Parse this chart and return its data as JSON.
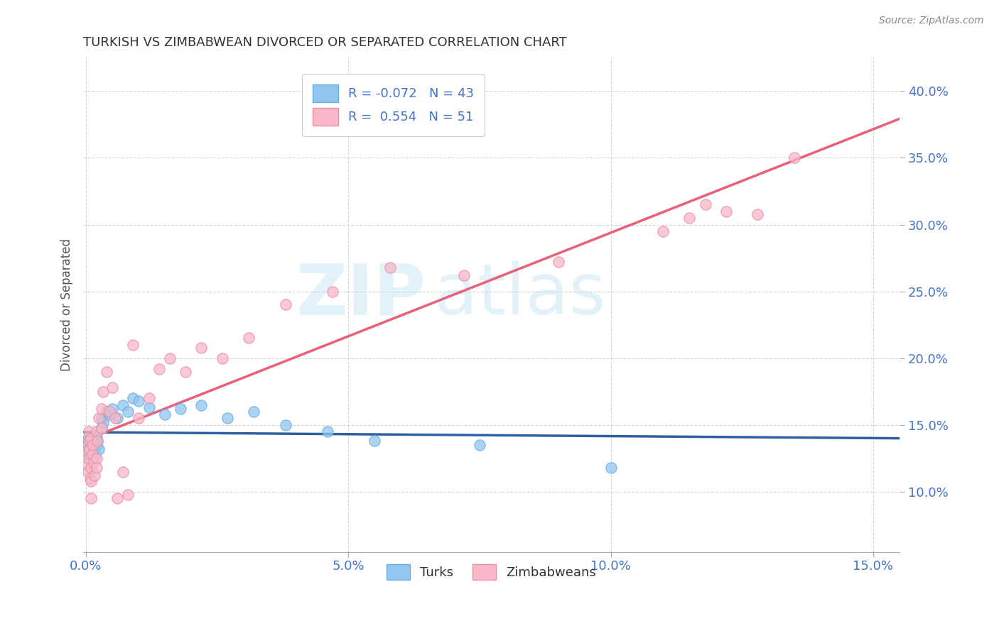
{
  "title": "TURKISH VS ZIMBABWEAN DIVORCED OR SEPARATED CORRELATION CHART",
  "source": "Source: ZipAtlas.com",
  "xlim": [
    -0.0005,
    0.155
  ],
  "ylim": [
    0.055,
    0.425
  ],
  "ylabel": "Divorced or Separated",
  "turks_color": "#92C5F0",
  "turks_edge_color": "#6aaee0",
  "zimbabweans_color": "#F9B8C8",
  "zimbabweans_edge_color": "#e890a8",
  "trend_turks_color": "#2E5FA3",
  "trend_zimbabweans_color": "#E8607A",
  "R_turks": -0.072,
  "N_turks": 43,
  "R_zimbabweans": 0.554,
  "N_zimbabweans": 51,
  "watermark_zip": "ZIP",
  "watermark_atlas": "atlas",
  "ytick_vals_pct": [
    10.0,
    15.0,
    20.0,
    25.0,
    30.0,
    35.0,
    40.0
  ],
  "xtick_vals_pct": [
    0.0,
    5.0,
    10.0,
    15.0
  ],
  "turks_x": [
    0.0002,
    0.0003,
    0.0004,
    0.0005,
    0.0006,
    0.0007,
    0.0008,
    0.0009,
    0.001,
    0.001,
    0.0012,
    0.0013,
    0.0014,
    0.0015,
    0.0016,
    0.0017,
    0.002,
    0.002,
    0.002,
    0.0022,
    0.0025,
    0.003,
    0.003,
    0.0033,
    0.004,
    0.0045,
    0.005,
    0.006,
    0.007,
    0.008,
    0.009,
    0.01,
    0.012,
    0.015,
    0.018,
    0.022,
    0.027,
    0.032,
    0.038,
    0.046,
    0.055,
    0.075,
    0.1
  ],
  "turks_y": [
    0.13,
    0.135,
    0.14,
    0.128,
    0.132,
    0.138,
    0.125,
    0.133,
    0.127,
    0.136,
    0.131,
    0.129,
    0.134,
    0.137,
    0.126,
    0.13,
    0.14,
    0.143,
    0.135,
    0.138,
    0.132,
    0.155,
    0.148,
    0.152,
    0.16,
    0.158,
    0.162,
    0.155,
    0.165,
    0.16,
    0.17,
    0.168,
    0.163,
    0.158,
    0.162,
    0.165,
    0.155,
    0.16,
    0.15,
    0.145,
    0.138,
    0.135,
    0.118
  ],
  "zimbabweans_x": [
    0.0002,
    0.0003,
    0.0004,
    0.0005,
    0.0005,
    0.0006,
    0.0007,
    0.0008,
    0.0009,
    0.001,
    0.001,
    0.001,
    0.0012,
    0.0013,
    0.0015,
    0.0016,
    0.002,
    0.002,
    0.002,
    0.0022,
    0.0025,
    0.003,
    0.003,
    0.0033,
    0.004,
    0.0045,
    0.005,
    0.0055,
    0.006,
    0.007,
    0.008,
    0.009,
    0.01,
    0.012,
    0.014,
    0.016,
    0.019,
    0.022,
    0.026,
    0.031,
    0.038,
    0.047,
    0.058,
    0.072,
    0.09,
    0.11,
    0.115,
    0.118,
    0.122,
    0.128,
    0.135
  ],
  "zimbabweans_y": [
    0.13,
    0.12,
    0.115,
    0.125,
    0.145,
    0.138,
    0.132,
    0.11,
    0.118,
    0.108,
    0.095,
    0.14,
    0.128,
    0.135,
    0.122,
    0.112,
    0.125,
    0.145,
    0.118,
    0.138,
    0.155,
    0.162,
    0.148,
    0.175,
    0.19,
    0.16,
    0.178,
    0.155,
    0.095,
    0.115,
    0.098,
    0.21,
    0.155,
    0.17,
    0.192,
    0.2,
    0.19,
    0.208,
    0.2,
    0.215,
    0.24,
    0.25,
    0.268,
    0.262,
    0.272,
    0.295,
    0.305,
    0.315,
    0.31,
    0.308,
    0.35
  ]
}
